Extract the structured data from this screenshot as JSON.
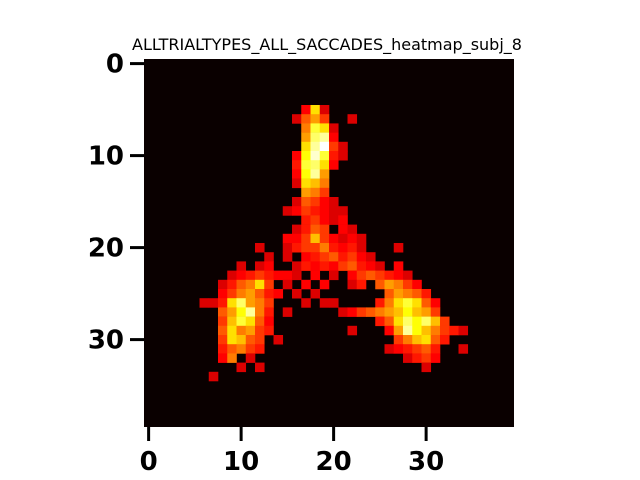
{
  "chart_data": {
    "type": "heatmap",
    "title": "ALLTRIALTYPES_ALL_SACCADES_heatmap_subj_8",
    "xlabel": "",
    "ylabel": "",
    "colormap": "hot",
    "background_color": "#0a0000",
    "grid": false,
    "grid_shape": [
      40,
      40
    ],
    "xlim": [
      -0.5,
      39.5
    ],
    "ylim": [
      39.5,
      -0.5
    ],
    "x_ticks": [
      0,
      10,
      20,
      30
    ],
    "y_ticks": [
      0,
      10,
      20,
      30
    ],
    "x_tick_labels": [
      "0",
      "10",
      "20",
      "30"
    ],
    "y_tick_labels": [
      "0",
      "10",
      "20",
      "30"
    ],
    "cells": [
      [
        17,
        5,
        0.35
      ],
      [
        18,
        5,
        0.7
      ],
      [
        19,
        5,
        0.3
      ],
      [
        16,
        6,
        0.3
      ],
      [
        17,
        6,
        0.5
      ],
      [
        18,
        6,
        0.6
      ],
      [
        19,
        6,
        0.45
      ],
      [
        22,
        6,
        0.3
      ],
      [
        17,
        7,
        0.55
      ],
      [
        18,
        7,
        0.8
      ],
      [
        19,
        7,
        0.7
      ],
      [
        20,
        7,
        0.3
      ],
      [
        17,
        8,
        0.6
      ],
      [
        18,
        8,
        0.85
      ],
      [
        19,
        8,
        0.9
      ],
      [
        20,
        8,
        0.35
      ],
      [
        17,
        9,
        0.7
      ],
      [
        18,
        9,
        0.9
      ],
      [
        19,
        9,
        1.0
      ],
      [
        20,
        9,
        0.45
      ],
      [
        21,
        9,
        0.3
      ],
      [
        16,
        10,
        0.35
      ],
      [
        17,
        10,
        0.75
      ],
      [
        18,
        10,
        0.95
      ],
      [
        19,
        10,
        0.8
      ],
      [
        20,
        10,
        0.4
      ],
      [
        21,
        10,
        0.3
      ],
      [
        16,
        11,
        0.4
      ],
      [
        17,
        11,
        0.8
      ],
      [
        18,
        11,
        0.85
      ],
      [
        19,
        11,
        0.7
      ],
      [
        20,
        11,
        0.35
      ],
      [
        16,
        12,
        0.35
      ],
      [
        17,
        12,
        0.75
      ],
      [
        18,
        12,
        0.9
      ],
      [
        19,
        12,
        0.6
      ],
      [
        16,
        13,
        0.3
      ],
      [
        17,
        13,
        0.7
      ],
      [
        18,
        13,
        0.65
      ],
      [
        19,
        13,
        0.55
      ],
      [
        17,
        14,
        0.6
      ],
      [
        18,
        14,
        0.55
      ],
      [
        19,
        14,
        0.45
      ],
      [
        16,
        15,
        0.3
      ],
      [
        17,
        15,
        0.5
      ],
      [
        18,
        15,
        0.45
      ],
      [
        19,
        15,
        0.35
      ],
      [
        20,
        15,
        0.3
      ],
      [
        15,
        16,
        0.3
      ],
      [
        16,
        16,
        0.35
      ],
      [
        17,
        16,
        0.45
      ],
      [
        18,
        16,
        0.4
      ],
      [
        19,
        16,
        0.35
      ],
      [
        20,
        16,
        0.3
      ],
      [
        21,
        16,
        0.3
      ],
      [
        17,
        17,
        0.4
      ],
      [
        18,
        17,
        0.45
      ],
      [
        19,
        17,
        0.35
      ],
      [
        20,
        17,
        0.3
      ],
      [
        21,
        17,
        0.35
      ],
      [
        16,
        18,
        0.3
      ],
      [
        17,
        18,
        0.4
      ],
      [
        18,
        18,
        0.5
      ],
      [
        19,
        18,
        0.45
      ],
      [
        21,
        18,
        0.35
      ],
      [
        22,
        18,
        0.3
      ],
      [
        15,
        19,
        0.35
      ],
      [
        16,
        19,
        0.35
      ],
      [
        17,
        19,
        0.45
      ],
      [
        18,
        19,
        0.65
      ],
      [
        19,
        19,
        0.45
      ],
      [
        20,
        19,
        0.35
      ],
      [
        21,
        19,
        0.3
      ],
      [
        22,
        19,
        0.35
      ],
      [
        23,
        19,
        0.3
      ],
      [
        12,
        20,
        0.3
      ],
      [
        15,
        20,
        0.3
      ],
      [
        16,
        20,
        0.4
      ],
      [
        17,
        20,
        0.45
      ],
      [
        18,
        20,
        0.45
      ],
      [
        19,
        20,
        0.55
      ],
      [
        20,
        20,
        0.4
      ],
      [
        21,
        20,
        0.35
      ],
      [
        22,
        20,
        0.4
      ],
      [
        23,
        20,
        0.3
      ],
      [
        27,
        20,
        0.3
      ],
      [
        13,
        21,
        0.3
      ],
      [
        15,
        21,
        0.3
      ],
      [
        17,
        21,
        0.35
      ],
      [
        18,
        21,
        0.4
      ],
      [
        19,
        21,
        0.45
      ],
      [
        20,
        21,
        0.5
      ],
      [
        21,
        21,
        0.4
      ],
      [
        22,
        21,
        0.45
      ],
      [
        23,
        21,
        0.35
      ],
      [
        24,
        21,
        0.3
      ],
      [
        10,
        22,
        0.3
      ],
      [
        12,
        22,
        0.3
      ],
      [
        13,
        22,
        0.35
      ],
      [
        16,
        22,
        0.3
      ],
      [
        17,
        22,
        0.4
      ],
      [
        18,
        22,
        0.35
      ],
      [
        19,
        22,
        0.4
      ],
      [
        20,
        22,
        0.35
      ],
      [
        21,
        22,
        0.45
      ],
      [
        22,
        22,
        0.5
      ],
      [
        23,
        22,
        0.4
      ],
      [
        24,
        22,
        0.35
      ],
      [
        25,
        22,
        0.3
      ],
      [
        27,
        22,
        0.35
      ],
      [
        9,
        23,
        0.3
      ],
      [
        10,
        23,
        0.35
      ],
      [
        11,
        23,
        0.4
      ],
      [
        12,
        23,
        0.45
      ],
      [
        13,
        23,
        0.4
      ],
      [
        14,
        23,
        0.35
      ],
      [
        15,
        23,
        0.35
      ],
      [
        16,
        23,
        0.3
      ],
      [
        18,
        23,
        0.35
      ],
      [
        20,
        23,
        0.3
      ],
      [
        22,
        23,
        0.35
      ],
      [
        23,
        23,
        0.45
      ],
      [
        24,
        23,
        0.5
      ],
      [
        25,
        23,
        0.45
      ],
      [
        26,
        23,
        0.4
      ],
      [
        27,
        23,
        0.35
      ],
      [
        28,
        23,
        0.3
      ],
      [
        8,
        24,
        0.3
      ],
      [
        9,
        24,
        0.4
      ],
      [
        10,
        24,
        0.5
      ],
      [
        11,
        24,
        0.55
      ],
      [
        12,
        24,
        0.7
      ],
      [
        13,
        24,
        0.45
      ],
      [
        15,
        24,
        0.3
      ],
      [
        17,
        24,
        0.35
      ],
      [
        19,
        24,
        0.35
      ],
      [
        22,
        24,
        0.3
      ],
      [
        23,
        24,
        0.4
      ],
      [
        25,
        24,
        0.5
      ],
      [
        26,
        24,
        0.6
      ],
      [
        27,
        24,
        0.55
      ],
      [
        28,
        24,
        0.45
      ],
      [
        29,
        24,
        0.35
      ],
      [
        8,
        25,
        0.35
      ],
      [
        9,
        25,
        0.45
      ],
      [
        10,
        25,
        0.55
      ],
      [
        11,
        25,
        0.6
      ],
      [
        12,
        25,
        0.5
      ],
      [
        13,
        25,
        0.4
      ],
      [
        14,
        25,
        0.35
      ],
      [
        16,
        25,
        0.3
      ],
      [
        18,
        25,
        0.3
      ],
      [
        26,
        25,
        0.5
      ],
      [
        27,
        25,
        0.6
      ],
      [
        28,
        25,
        0.55
      ],
      [
        29,
        25,
        0.5
      ],
      [
        30,
        25,
        0.4
      ],
      [
        6,
        26,
        0.3
      ],
      [
        7,
        26,
        0.3
      ],
      [
        8,
        26,
        0.4
      ],
      [
        9,
        26,
        0.7
      ],
      [
        10,
        26,
        0.85
      ],
      [
        11,
        26,
        0.6
      ],
      [
        12,
        26,
        0.55
      ],
      [
        13,
        26,
        0.45
      ],
      [
        17,
        26,
        0.3
      ],
      [
        19,
        26,
        0.3
      ],
      [
        20,
        26,
        0.3
      ],
      [
        25,
        26,
        0.4
      ],
      [
        26,
        26,
        0.55
      ],
      [
        27,
        26,
        0.7
      ],
      [
        28,
        26,
        0.8
      ],
      [
        29,
        26,
        0.7
      ],
      [
        30,
        26,
        0.5
      ],
      [
        31,
        26,
        0.35
      ],
      [
        8,
        27,
        0.5
      ],
      [
        9,
        27,
        0.6
      ],
      [
        10,
        27,
        0.75
      ],
      [
        11,
        27,
        0.9
      ],
      [
        12,
        27,
        0.55
      ],
      [
        13,
        27,
        0.4
      ],
      [
        15,
        27,
        0.3
      ],
      [
        21,
        27,
        0.3
      ],
      [
        22,
        27,
        0.35
      ],
      [
        23,
        27,
        0.45
      ],
      [
        24,
        27,
        0.5
      ],
      [
        25,
        27,
        0.55
      ],
      [
        26,
        27,
        0.6
      ],
      [
        27,
        27,
        0.65
      ],
      [
        28,
        27,
        0.75
      ],
      [
        29,
        27,
        0.65
      ],
      [
        30,
        27,
        0.6
      ],
      [
        31,
        27,
        0.45
      ],
      [
        8,
        28,
        0.45
      ],
      [
        9,
        28,
        0.65
      ],
      [
        10,
        28,
        0.8
      ],
      [
        11,
        28,
        0.7
      ],
      [
        12,
        28,
        0.5
      ],
      [
        13,
        28,
        0.35
      ],
      [
        25,
        28,
        0.4
      ],
      [
        26,
        28,
        0.5
      ],
      [
        27,
        28,
        0.7
      ],
      [
        28,
        28,
        0.85
      ],
      [
        29,
        28,
        0.75
      ],
      [
        30,
        28,
        0.85
      ],
      [
        31,
        28,
        0.65
      ],
      [
        32,
        28,
        0.45
      ],
      [
        8,
        29,
        0.5
      ],
      [
        9,
        29,
        0.7
      ],
      [
        10,
        29,
        0.55
      ],
      [
        11,
        29,
        0.6
      ],
      [
        12,
        29,
        0.45
      ],
      [
        13,
        29,
        0.4
      ],
      [
        22,
        29,
        0.3
      ],
      [
        26,
        29,
        0.35
      ],
      [
        27,
        29,
        0.6
      ],
      [
        28,
        29,
        0.9
      ],
      [
        29,
        29,
        0.75
      ],
      [
        30,
        29,
        0.65
      ],
      [
        31,
        29,
        0.55
      ],
      [
        32,
        29,
        0.45
      ],
      [
        33,
        29,
        0.4
      ],
      [
        34,
        29,
        0.3
      ],
      [
        8,
        30,
        0.45
      ],
      [
        9,
        30,
        0.7
      ],
      [
        10,
        30,
        0.65
      ],
      [
        11,
        30,
        0.5
      ],
      [
        12,
        30,
        0.45
      ],
      [
        14,
        30,
        0.3
      ],
      [
        27,
        30,
        0.45
      ],
      [
        28,
        30,
        0.55
      ],
      [
        29,
        30,
        0.65
      ],
      [
        30,
        30,
        0.7
      ],
      [
        31,
        30,
        0.5
      ],
      [
        32,
        30,
        0.4
      ],
      [
        8,
        31,
        0.4
      ],
      [
        9,
        31,
        0.5
      ],
      [
        10,
        31,
        0.55
      ],
      [
        11,
        31,
        0.45
      ],
      [
        12,
        31,
        0.4
      ],
      [
        26,
        31,
        0.3
      ],
      [
        27,
        31,
        0.35
      ],
      [
        28,
        31,
        0.4
      ],
      [
        29,
        31,
        0.45
      ],
      [
        30,
        31,
        0.5
      ],
      [
        31,
        31,
        0.4
      ],
      [
        34,
        31,
        0.3
      ],
      [
        8,
        32,
        0.35
      ],
      [
        9,
        32,
        0.55
      ],
      [
        11,
        32,
        0.3
      ],
      [
        28,
        32,
        0.3
      ],
      [
        29,
        32,
        0.4
      ],
      [
        30,
        32,
        0.45
      ],
      [
        31,
        32,
        0.35
      ],
      [
        10,
        33,
        0.3
      ],
      [
        12,
        33,
        0.3
      ],
      [
        30,
        33,
        0.3
      ],
      [
        7,
        34,
        0.3
      ]
    ]
  }
}
